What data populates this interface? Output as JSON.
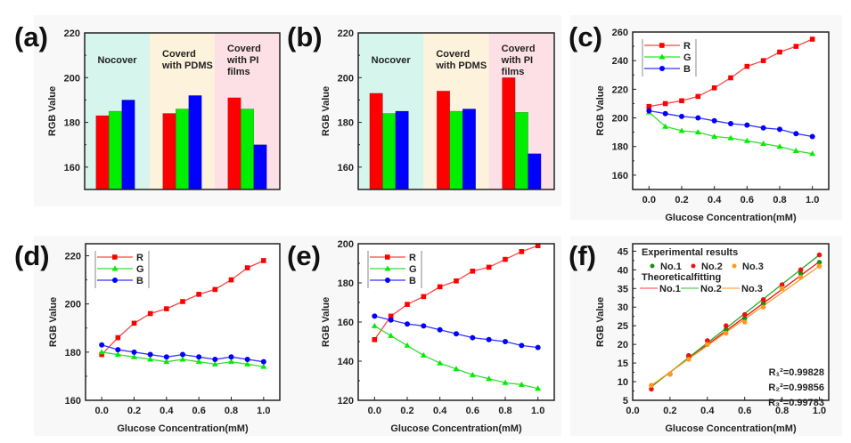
{
  "panels": [
    "(a)",
    "(b)",
    "(c)",
    "(d)",
    "(e)",
    "(f)"
  ],
  "colors": {
    "R": "#ff0000",
    "G": "#00ee00",
    "B": "#0000ff",
    "R_line": "#ff4444",
    "G_line": "#33dd33",
    "B_line": "#3333ff",
    "bg_nocover": "#d6f5ec",
    "bg_pdms": "#fdf3dc",
    "bg_pi": "#fde0e6",
    "f_no1": "#1a8f1a",
    "f_no2": "#ee1111",
    "f_no3": "#ff9922"
  },
  "chart_data": [
    {
      "id": "a",
      "type": "bar",
      "label": "(a)",
      "ylabel": "RGB Value",
      "xlabel": "",
      "ylim": [
        150,
        220
      ],
      "yticks": [
        160,
        180,
        200,
        220
      ],
      "groups": [
        "Nocover",
        "Coverd with PDMS",
        "Coverd with PI films"
      ],
      "group_label_lines": [
        [
          "Nocover"
        ],
        [
          "Coverd",
          "with PDMS"
        ],
        [
          "Coverd",
          "with PI",
          "films"
        ]
      ],
      "series": [
        {
          "name": "R",
          "values": [
            183,
            184,
            191
          ]
        },
        {
          "name": "G",
          "values": [
            185,
            186,
            186
          ]
        },
        {
          "name": "B",
          "values": [
            190,
            192,
            170
          ]
        }
      ]
    },
    {
      "id": "b",
      "type": "bar",
      "label": "(b)",
      "ylabel": "RGB Value",
      "xlabel": "",
      "ylim": [
        150,
        220
      ],
      "yticks": [
        160,
        180,
        200,
        220
      ],
      "groups": [
        "Nocover",
        "Coverd with PDMS",
        "Coverd with PI films"
      ],
      "group_label_lines": [
        [
          "Nocover"
        ],
        [
          "Coverd",
          "with PDMS"
        ],
        [
          "Coverd",
          "with PI",
          "films"
        ]
      ],
      "series": [
        {
          "name": "R",
          "values": [
            193,
            194,
            200
          ]
        },
        {
          "name": "G",
          "values": [
            184,
            185,
            184.5
          ]
        },
        {
          "name": "B",
          "values": [
            185,
            186,
            166
          ]
        }
      ]
    },
    {
      "id": "c",
      "type": "line",
      "label": "(c)",
      "xlabel": "Glucose Concentration(mM)",
      "ylabel": "RGB Value",
      "xlim": [
        -0.1,
        1.1
      ],
      "ylim": [
        150,
        260
      ],
      "xticks": [
        "0.0",
        "0.2",
        "0.4",
        "0.6",
        "0.8",
        "1.0"
      ],
      "yticks": [
        160,
        180,
        200,
        220,
        240,
        260
      ],
      "legend": "top-left",
      "x": [
        0,
        0.1,
        0.2,
        0.3,
        0.4,
        0.5,
        0.6,
        0.7,
        0.8,
        0.9,
        1.0
      ],
      "series": [
        {
          "name": "R",
          "marker": "square",
          "values": [
            208,
            210,
            212,
            215,
            221,
            228,
            236,
            240,
            246,
            250,
            255
          ]
        },
        {
          "name": "G",
          "marker": "triangle",
          "values": [
            204,
            194,
            191,
            190,
            187,
            186,
            184,
            182,
            180,
            177,
            175
          ]
        },
        {
          "name": "B",
          "marker": "circle",
          "values": [
            205,
            203,
            201,
            200,
            198,
            196,
            195,
            193,
            192,
            189,
            187
          ]
        }
      ]
    },
    {
      "id": "d",
      "type": "line",
      "label": "(d)",
      "xlabel": "Glucose Concentration(mM)",
      "ylabel": "RGB Value",
      "xlim": [
        -0.1,
        1.1
      ],
      "ylim": [
        160,
        225
      ],
      "xticks": [
        "0.0",
        "0.2",
        "0.4",
        "0.6",
        "0.8",
        "1.0"
      ],
      "yticks": [
        160,
        180,
        200,
        220
      ],
      "legend": "top-left",
      "x": [
        0,
        0.1,
        0.2,
        0.3,
        0.4,
        0.5,
        0.6,
        0.7,
        0.8,
        0.9,
        1.0
      ],
      "series": [
        {
          "name": "R",
          "marker": "square",
          "values": [
            179,
            186,
            192,
            196,
            198,
            201,
            204,
            206,
            210,
            215,
            218
          ]
        },
        {
          "name": "G",
          "marker": "triangle",
          "values": [
            180,
            179,
            178,
            177,
            176,
            177,
            176,
            175,
            176,
            175,
            174
          ]
        },
        {
          "name": "B",
          "marker": "circle",
          "values": [
            183,
            181,
            180,
            179,
            178,
            179,
            178,
            177,
            178,
            177,
            176
          ]
        }
      ]
    },
    {
      "id": "e",
      "type": "line",
      "label": "(e)",
      "xlabel": "Glucose Concentration(mM)",
      "ylabel": "RGB Value",
      "xlim": [
        -0.1,
        1.1
      ],
      "ylim": [
        120,
        200
      ],
      "xticks": [
        "0.0",
        "0.2",
        "0.4",
        "0.6",
        "0.8",
        "1.0"
      ],
      "yticks": [
        120,
        140,
        160,
        180,
        200
      ],
      "legend": "top-left",
      "x": [
        0,
        0.1,
        0.2,
        0.3,
        0.4,
        0.5,
        0.6,
        0.7,
        0.8,
        0.9,
        1.0
      ],
      "series": [
        {
          "name": "R",
          "marker": "square",
          "values": [
            151,
            163,
            169,
            173,
            178,
            181,
            186,
            188,
            192,
            196,
            199
          ]
        },
        {
          "name": "G",
          "marker": "triangle",
          "values": [
            158,
            153,
            148,
            143,
            139,
            136,
            133,
            131,
            129,
            128,
            126
          ]
        },
        {
          "name": "B",
          "marker": "circle",
          "values": [
            163,
            161,
            159,
            158,
            156,
            154,
            152,
            151,
            150,
            148,
            147
          ]
        }
      ]
    },
    {
      "id": "f",
      "type": "scatter",
      "label": "(f)",
      "xlabel": "Glucose Concentration(mM)",
      "ylabel": "RGB Value",
      "xlim": [
        0.0,
        1.05
      ],
      "ylim": [
        5,
        47
      ],
      "xticks": [
        "0.0",
        "0.2",
        "0.4",
        "0.6",
        "0.8",
        "1.0"
      ],
      "yticks": [
        5,
        10,
        15,
        20,
        25,
        30,
        35,
        40,
        45
      ],
      "legend": "top-left",
      "legend_title_points": "Experimental results",
      "legend_title_lines": "Theoreticalfitting",
      "x": [
        0.1,
        0.2,
        0.3,
        0.4,
        0.5,
        0.6,
        0.7,
        0.8,
        0.9,
        1.0
      ],
      "series": [
        {
          "name": "No.1",
          "values": [
            9,
            12,
            16.5,
            20,
            24,
            27,
            31,
            35,
            39,
            42
          ],
          "fit": [
            8.8,
            42.2
          ],
          "r2": "R₁²=0.99828"
        },
        {
          "name": "No.2",
          "values": [
            8,
            12,
            17,
            21,
            25,
            28,
            32,
            36,
            40,
            44
          ],
          "fit": [
            8.6,
            44
          ],
          "r2": "R₂²=0.99856"
        },
        {
          "name": "No.3",
          "values": [
            9,
            12,
            16,
            20,
            23,
            26,
            30,
            35,
            38,
            41
          ],
          "fit": [
            9,
            41
          ],
          "r2": "R₃²=0.99783"
        }
      ],
      "fit_line_labels": [
        "No.1",
        "No.2",
        "No.3"
      ]
    }
  ]
}
